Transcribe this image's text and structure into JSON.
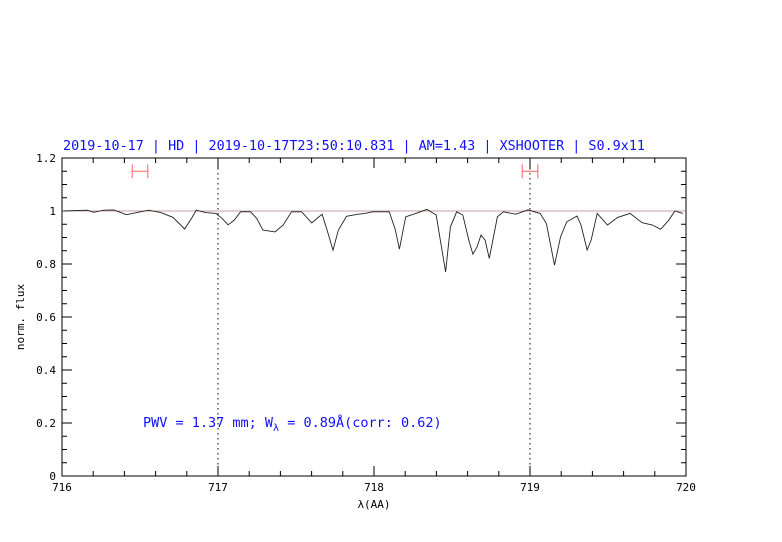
{
  "chart_data": {
    "type": "line",
    "title": "2019-10-17 | HD | 2019-10-17T23:50:10.831 | AM=1.43 | XSHOOTER | S0.9x11",
    "xlabel": "λ(AA)",
    "ylabel": "norm. flux",
    "xlim": [
      716,
      720
    ],
    "ylim": [
      0,
      1.2
    ],
    "xticks": [
      "716",
      "717",
      "718",
      "719",
      "720"
    ],
    "yticks": [
      "0",
      "0.2",
      "0.4",
      "0.6",
      "0.8",
      "1",
      "1.2"
    ],
    "grid": false,
    "annotation": "PWV = 1.37 mm; Wλ = 0.89Å(corr: 0.62)",
    "annotation_parts": {
      "pre": "PWV = 1.37 mm; W",
      "sub": "λ",
      "post": " = 0.89Å(corr: 0.62)"
    },
    "continuum_level": 1.0,
    "vertical_markers": [
      717,
      719
    ],
    "error_bars": [
      {
        "x": 716.5,
        "xerr": 0.05,
        "y": 1.15
      },
      {
        "x": 719.0,
        "xerr": 0.05,
        "y": 1.15
      }
    ],
    "colors": {
      "title": "#1010ff",
      "annotation": "#1010ff",
      "spectrum": "#222222",
      "continuum": "#c8a0a0",
      "error_bars": "#ff6060"
    },
    "series": [
      {
        "x": [
          716.007,
          716.163,
          716.203,
          716.268,
          716.333,
          716.412,
          716.503,
          716.556,
          716.634,
          716.712,
          716.786,
          716.83,
          716.861,
          716.922,
          716.987,
          717.026,
          717.065,
          717.105,
          717.144,
          717.209,
          717.248,
          717.288,
          717.366,
          717.418,
          717.471,
          717.536,
          717.601,
          717.667,
          717.706,
          717.737,
          717.771,
          717.824,
          717.889,
          717.941,
          717.993,
          718.098,
          718.137,
          718.163,
          718.203,
          718.268,
          718.339,
          718.399,
          718.425,
          718.459,
          718.49,
          718.53,
          718.569,
          718.608,
          718.634,
          718.66,
          718.686,
          718.712,
          718.739,
          718.791,
          718.83,
          718.909,
          718.987,
          719.065,
          719.105,
          719.157,
          719.196,
          719.235,
          719.301,
          719.327,
          719.366,
          719.392,
          719.431,
          719.497,
          719.562,
          719.641,
          719.719,
          719.784,
          719.837,
          719.889,
          719.928,
          719.98
        ],
        "y": [
          1.0,
          1.003,
          0.995,
          1.003,
          1.004,
          0.986,
          0.997,
          1.003,
          0.994,
          0.976,
          0.932,
          0.972,
          1.003,
          0.994,
          0.991,
          0.972,
          0.948,
          0.966,
          0.997,
          0.997,
          0.972,
          0.928,
          0.921,
          0.947,
          0.997,
          0.997,
          0.955,
          0.988,
          0.915,
          0.852,
          0.927,
          0.98,
          0.987,
          0.991,
          0.997,
          0.997,
          0.928,
          0.856,
          0.978,
          0.991,
          1.006,
          0.985,
          0.89,
          0.77,
          0.94,
          0.997,
          0.985,
          0.89,
          0.837,
          0.864,
          0.909,
          0.89,
          0.821,
          0.978,
          0.997,
          0.988,
          1.004,
          0.991,
          0.953,
          0.796,
          0.903,
          0.959,
          0.981,
          0.947,
          0.853,
          0.891,
          0.991,
          0.947,
          0.976,
          0.991,
          0.956,
          0.947,
          0.931,
          0.965,
          1.0,
          0.991
        ]
      }
    ]
  }
}
